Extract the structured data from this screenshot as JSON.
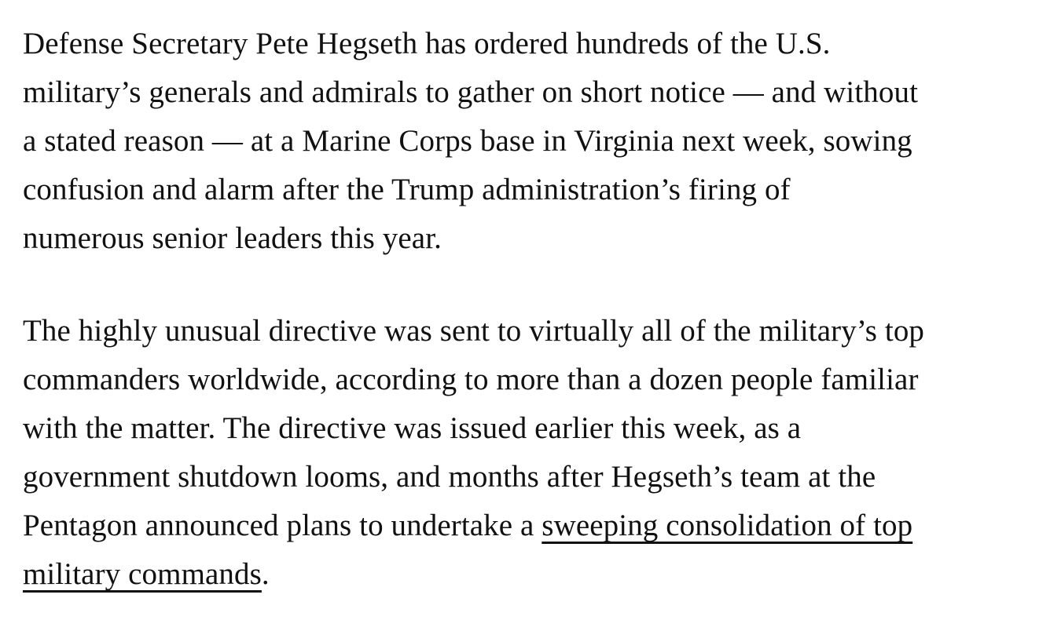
{
  "page": {
    "background_color": "#ffffff",
    "text_color": "#111111",
    "link_underline_color": "#111111"
  },
  "article": {
    "link_text": "sweeping consolidation of top military commands",
    "paragraphs": [
      {
        "name": "paragraph-1",
        "lines": [
          [
            {
              "text": "Defense Secretary Pete Hegseth has ordered hundreds of the U.S.",
              "link": false
            }
          ],
          [
            {
              "text": "military’s generals and admirals to gather on short notice — and without",
              "link": false
            }
          ],
          [
            {
              "text": "a stated reason — at a Marine Corps base in Virginia next week, sowing",
              "link": false
            }
          ],
          [
            {
              "text": "confusion and alarm after the Trump administration’s firing of",
              "link": false
            }
          ],
          [
            {
              "text": "numerous senior leaders this year.",
              "link": false
            }
          ]
        ]
      },
      {
        "name": "paragraph-2",
        "lines": [
          [
            {
              "text": "The highly unusual directive was sent to virtually all of the military’s top",
              "link": false
            }
          ],
          [
            {
              "text": "commanders worldwide, according to more than a dozen people familiar",
              "link": false
            }
          ],
          [
            {
              "text": "with the matter. The directive was issued earlier this week, as a",
              "link": false
            }
          ],
          [
            {
              "text": "government shutdown looms, and months after Hegseth’s team at the",
              "link": false
            }
          ],
          [
            {
              "text": "Pentagon announced plans to undertake a ",
              "link": false
            },
            {
              "text": "sweeping consolidation of top",
              "link": true
            }
          ],
          [
            {
              "text": "military commands",
              "link": true
            },
            {
              "text": ".",
              "link": false
            }
          ]
        ]
      }
    ]
  }
}
